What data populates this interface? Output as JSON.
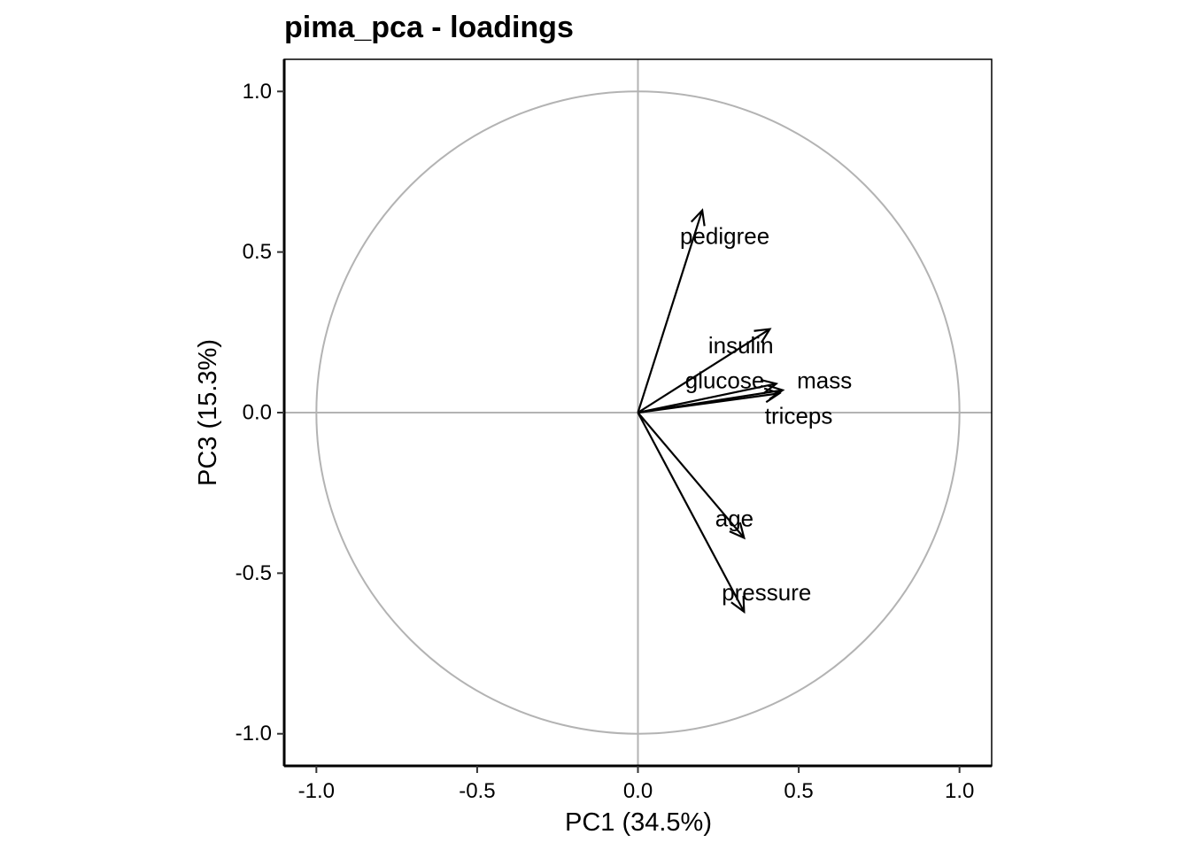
{
  "chart_data": {
    "type": "scatter",
    "subtype": "pca-loadings-biplot",
    "title": "pima_pca - loadings",
    "xlabel": "PC1 (34.5%)",
    "ylabel": "PC3 (15.3%)",
    "xlim": [
      -1.1,
      1.1
    ],
    "ylim": [
      -1.1,
      1.1
    ],
    "x_ticks": [
      -1.0,
      -0.5,
      0.0,
      0.5,
      1.0
    ],
    "y_ticks": [
      -1.0,
      -0.5,
      0.0,
      0.5,
      1.0
    ],
    "x_tick_labels": [
      "-1.0",
      "-0.5",
      "0.0",
      "0.5",
      "1.0"
    ],
    "y_tick_labels": [
      "-1.0",
      "-0.5",
      "0.0",
      "0.5",
      "1.0"
    ],
    "unit_circle": true,
    "reference_lines": {
      "x": 0,
      "y": 0
    },
    "grid": false,
    "colors": {
      "arrows": "#000000",
      "circle": "#b3b3b3",
      "reference": "#b3b3b3",
      "axes": "#000000"
    },
    "loadings": [
      {
        "variable": "pedigree",
        "x": 0.2,
        "y": 0.63
      },
      {
        "variable": "insulin",
        "x": 0.41,
        "y": 0.26
      },
      {
        "variable": "glucose",
        "x": 0.43,
        "y": 0.09
      },
      {
        "variable": "mass",
        "x": 0.45,
        "y": 0.07
      },
      {
        "variable": "triceps",
        "x": 0.44,
        "y": 0.06
      },
      {
        "variable": "age",
        "x": 0.33,
        "y": -0.39
      },
      {
        "variable": "pressure",
        "x": 0.33,
        "y": -0.62
      }
    ],
    "label_positions": [
      {
        "variable": "pedigree",
        "x": 0.27,
        "y": 0.55
      },
      {
        "variable": "insulin",
        "x": 0.32,
        "y": 0.21
      },
      {
        "variable": "glucose",
        "x": 0.27,
        "y": 0.1
      },
      {
        "variable": "mass",
        "x": 0.58,
        "y": 0.1
      },
      {
        "variable": "triceps",
        "x": 0.5,
        "y": -0.01
      },
      {
        "variable": "age",
        "x": 0.3,
        "y": -0.33
      },
      {
        "variable": "pressure",
        "x": 0.4,
        "y": -0.56
      }
    ]
  }
}
